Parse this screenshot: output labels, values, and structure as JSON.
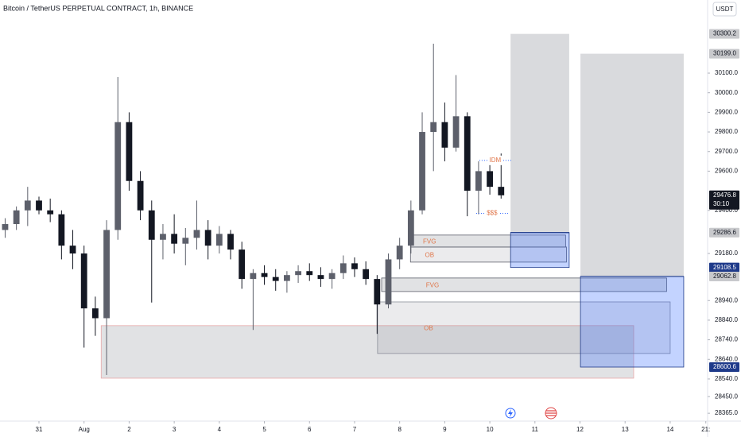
{
  "chart_data": {
    "type": "candlestick",
    "title": "Bitcoin / TetherUS PERPETUAL CONTRACT, 1h, BINANCE",
    "currency_button": "USDT",
    "up_color": "#5d606b",
    "down_color": "#131722",
    "xlim": [
      -0.864,
      14.83
    ],
    "ylim": [
      28325,
      30473
    ],
    "xticks": [
      {
        "value": 0,
        "label": "31"
      },
      {
        "value": 1,
        "label": "Aug"
      },
      {
        "value": 2,
        "label": "2"
      },
      {
        "value": 3,
        "label": "3"
      },
      {
        "value": 4,
        "label": "4"
      },
      {
        "value": 5,
        "label": "5"
      },
      {
        "value": 6,
        "label": "6"
      },
      {
        "value": 7,
        "label": "7"
      },
      {
        "value": 8,
        "label": "8"
      },
      {
        "value": 9,
        "label": "9"
      },
      {
        "value": 10,
        "label": "10"
      },
      {
        "value": 11,
        "label": "11"
      },
      {
        "value": 12,
        "label": "12"
      },
      {
        "value": 13,
        "label": "13"
      },
      {
        "value": 14,
        "label": "14"
      },
      {
        "value": 14.79,
        "label": "21:"
      }
    ],
    "yticks": [
      {
        "value": 30100,
        "label": "30100.0"
      },
      {
        "value": 30000,
        "label": "30000.0"
      },
      {
        "value": 29900,
        "label": "29900.0"
      },
      {
        "value": 29800,
        "label": "29800.0"
      },
      {
        "value": 29700,
        "label": "29700.0"
      },
      {
        "value": 29600,
        "label": "29600.0"
      },
      {
        "value": 29400,
        "label": "29400.0"
      },
      {
        "value": 29180,
        "label": "29180.0"
      },
      {
        "value": 28940,
        "label": "28940.0"
      },
      {
        "value": 28840,
        "label": "28840.0"
      },
      {
        "value": 28740,
        "label": "28740.0"
      },
      {
        "value": 28640,
        "label": "28640.0"
      },
      {
        "value": 28540,
        "label": "28540.0"
      },
      {
        "value": 28450,
        "label": "28450.0"
      },
      {
        "value": 28365,
        "label": "28365.0"
      }
    ],
    "price_labels": [
      {
        "value": 30300.2,
        "label": "30300.2",
        "color": "#c8c9cc",
        "text_color": "#131722"
      },
      {
        "value": 30199.0,
        "label": "30199.0",
        "color": "#c8c9cc",
        "text_color": "#131722"
      },
      {
        "value": 29476.8,
        "label": "29476.8",
        "color": "#131722",
        "text_color": "#ffffff",
        "countdown": "30:10"
      },
      {
        "value": 29286.6,
        "label": "29286.6",
        "color": "#c8c9cc",
        "text_color": "#131722"
      },
      {
        "value": 29108.5,
        "label": "29108.5",
        "color": "#1e3a8a",
        "text_color": "#ffffff"
      },
      {
        "value": 29062.8,
        "label": "29062.8",
        "color": "#c8c9cc",
        "text_color": "#131722"
      },
      {
        "value": 28600.6,
        "label": "28600.6",
        "color": "#1e3a8a",
        "text_color": "#ffffff"
      }
    ],
    "x": [
      -0.75,
      -0.5,
      -0.25,
      0,
      0.25,
      0.5,
      0.75,
      1,
      1.25,
      1.5,
      1.75,
      2,
      2.25,
      2.5,
      2.75,
      3,
      3.25,
      3.5,
      3.75,
      4,
      4.25,
      4.5,
      4.75,
      5,
      5.25,
      5.5,
      5.75,
      6,
      6.25,
      6.5,
      6.75,
      7,
      7.25,
      7.5,
      7.75,
      8,
      8.25,
      8.5,
      8.75,
      9,
      9.25,
      9.5,
      9.75,
      10,
      10.25
    ],
    "candles": [
      [
        29300,
        29360,
        29260,
        29330
      ],
      [
        29330,
        29420,
        29300,
        29400
      ],
      [
        29400,
        29520,
        29320,
        29450
      ],
      [
        29450,
        29470,
        29380,
        29400
      ],
      [
        29400,
        29460,
        29340,
        29380
      ],
      [
        29380,
        29400,
        29150,
        29220
      ],
      [
        29220,
        29300,
        29100,
        29180
      ],
      [
        29180,
        29220,
        28700,
        28900
      ],
      [
        28900,
        28960,
        28760,
        28850
      ],
      [
        28850,
        29350,
        28560,
        29300
      ],
      [
        29300,
        30080,
        29250,
        29850
      ],
      [
        29850,
        29900,
        29500,
        29550
      ],
      [
        29550,
        29600,
        29350,
        29400
      ],
      [
        29400,
        29450,
        28930,
        29250
      ],
      [
        29250,
        29330,
        29150,
        29280
      ],
      [
        29280,
        29380,
        29180,
        29230
      ],
      [
        29230,
        29310,
        29120,
        29260
      ],
      [
        29260,
        29450,
        29200,
        29300
      ],
      [
        29300,
        29350,
        29150,
        29220
      ],
      [
        29220,
        29320,
        29180,
        29280
      ],
      [
        29280,
        29300,
        29150,
        29200
      ],
      [
        29200,
        29240,
        29000,
        29050
      ],
      [
        29050,
        29100,
        28790,
        29080
      ],
      [
        29080,
        29120,
        29020,
        29060
      ],
      [
        29060,
        29100,
        28990,
        29040
      ],
      [
        29040,
        29090,
        28980,
        29070
      ],
      [
        29070,
        29120,
        29030,
        29090
      ],
      [
        29090,
        29130,
        29040,
        29070
      ],
      [
        29070,
        29110,
        29010,
        29050
      ],
      [
        29050,
        29100,
        29000,
        29080
      ],
      [
        29080,
        29170,
        29050,
        29130
      ],
      [
        29130,
        29160,
        29060,
        29100
      ],
      [
        29100,
        29140,
        29020,
        29050
      ],
      [
        29050,
        29070,
        28770,
        28920
      ],
      [
        28920,
        29180,
        28900,
        29150
      ],
      [
        29150,
        29260,
        29100,
        29220
      ],
      [
        29220,
        29450,
        29180,
        29400
      ],
      [
        29400,
        29900,
        29380,
        29800
      ],
      [
        29800,
        30250,
        29600,
        29850
      ],
      [
        29850,
        29950,
        29650,
        29720
      ],
      [
        29720,
        30090,
        29700,
        29880
      ],
      [
        29880,
        29900,
        29370,
        29500
      ],
      [
        29500,
        29650,
        29380,
        29600
      ],
      [
        29600,
        29650,
        29480,
        29520
      ],
      [
        29520,
        29690,
        29460,
        29476.8
      ]
    ],
    "zones": [
      {
        "x": [
          1.38,
          13.19
        ],
        "y": [
          28544,
          28812
        ],
        "fill": "rgba(120,123,134,0.22)",
        "stroke": "#e8a8a8"
      },
      {
        "x": [
          7.51,
          14.0
        ],
        "y": [
          28670,
          28933
        ],
        "fill": "rgba(120,123,134,0.15)",
        "stroke": "#8c8f99",
        "label": "OB"
      },
      {
        "x": [
          7.6,
          13.92
        ],
        "y": [
          28986,
          29055
        ],
        "fill": "rgba(120,123,134,0.22)",
        "stroke": "#5d606b",
        "label": "FVG"
      },
      {
        "x": [
          8.24,
          11.68
        ],
        "y": [
          29213,
          29274
        ],
        "fill": "rgba(120,123,134,0.22)",
        "stroke": "#5d606b",
        "label": "FVG"
      },
      {
        "x": [
          8.24,
          11.7
        ],
        "y": [
          29136,
          29213
        ],
        "fill": "rgba(120,123,134,0.15)",
        "stroke": "#5d606b",
        "label": "OB"
      },
      {
        "x": [
          10.46,
          11.76
        ],
        "y": [
          29286.6,
          30300.2
        ],
        "fill": "rgba(120,123,134,0.28)",
        "stroke": "none"
      },
      {
        "x": [
          10.46,
          11.76
        ],
        "y": [
          29108.5,
          29286.6
        ],
        "fill": "rgba(41,98,255,0.28)",
        "stroke": "#1e3a8a"
      },
      {
        "x": [
          12.01,
          14.3
        ],
        "y": [
          29062.8,
          30199.0
        ],
        "fill": "rgba(120,123,134,0.28)",
        "stroke": "none"
      },
      {
        "x": [
          12.01,
          14.3
        ],
        "y": [
          28600.6,
          29062.8
        ],
        "fill": "rgba(41,98,255,0.28)",
        "stroke": "#1e3a8a"
      }
    ],
    "annotations": [
      {
        "text": "IDM",
        "x": 10.12,
        "y": 29655
      },
      {
        "text": "$$$",
        "x": 10.05,
        "y": 29385
      }
    ]
  }
}
